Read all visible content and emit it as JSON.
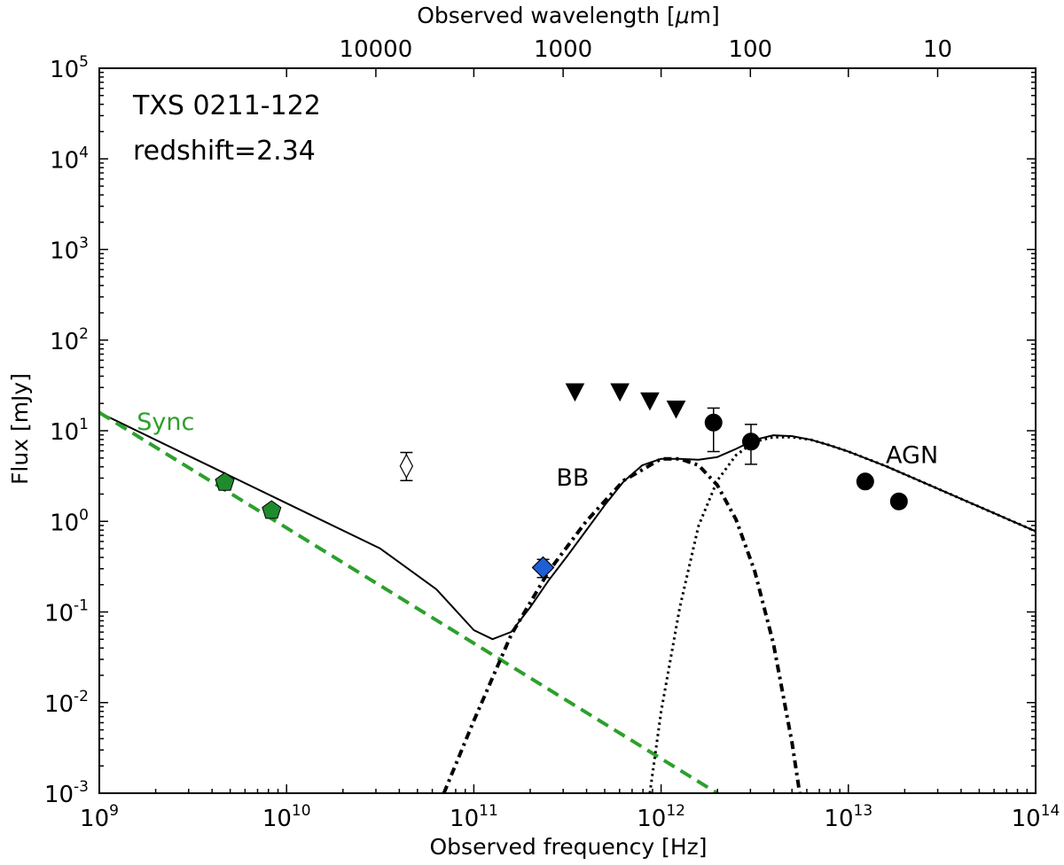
{
  "chart_data": {
    "type": "scatter",
    "title_lines": [
      "TXS 0211-122",
      "redshift=2.34"
    ],
    "xlabel": "Observed frequency [Hz]",
    "ylabel": "Flux [mJy]",
    "top_xlabel_prefix": "Observed wavelength [",
    "top_xlabel_unit": "μ",
    "top_xlabel_suffix": "m]",
    "x_scale": "log",
    "y_scale": "log",
    "xlim_log10": [
      9,
      14
    ],
    "ylim_log10": [
      -3,
      5
    ],
    "x_ticks": [
      {
        "base": "10",
        "exp": "9",
        "v": 9
      },
      {
        "base": "10",
        "exp": "10",
        "v": 10
      },
      {
        "base": "10",
        "exp": "11",
        "v": 11
      },
      {
        "base": "10",
        "exp": "12",
        "v": 12
      },
      {
        "base": "10",
        "exp": "13",
        "v": 13
      },
      {
        "base": "10",
        "exp": "14",
        "v": 14
      }
    ],
    "y_ticks": [
      {
        "base": "10",
        "exp": "-3",
        "v": -3
      },
      {
        "base": "10",
        "exp": "-2",
        "v": -2
      },
      {
        "base": "10",
        "exp": "-1",
        "v": -1
      },
      {
        "base": "10",
        "exp": "0",
        "v": 0
      },
      {
        "base": "10",
        "exp": "1",
        "v": 1
      },
      {
        "base": "10",
        "exp": "2",
        "v": 2
      },
      {
        "base": "10",
        "exp": "3",
        "v": 3
      },
      {
        "base": "10",
        "exp": "4",
        "v": 4
      },
      {
        "base": "10",
        "exp": "5",
        "v": 5
      }
    ],
    "top_ticks": [
      {
        "label": "10000",
        "lambda_um": 10000
      },
      {
        "label": "1000",
        "lambda_um": 1000
      },
      {
        "label": "100",
        "lambda_um": 100
      },
      {
        "label": "10",
        "lambda_um": 10
      }
    ],
    "annotations": [
      {
        "text": "Sync",
        "x_log": 9.2,
        "y_log": 1.1,
        "color": "#2ca02c",
        "cls": "annot-mid"
      },
      {
        "text": "BB",
        "x_log": 11.44,
        "y_log": 0.48,
        "color": "#000000",
        "cls": "annot-mid"
      },
      {
        "text": "AGN",
        "x_log": 13.2,
        "y_log": 0.73,
        "color": "#000000",
        "cls": "annot-mid"
      }
    ],
    "series": [
      {
        "name": "total-model",
        "style": "solid",
        "color": "#000000",
        "x_log": [
          9.0,
          9.5,
          10.0,
          10.5,
          10.8,
          11.0,
          11.1,
          11.2,
          11.3,
          11.4,
          11.5,
          11.6,
          11.7,
          11.8,
          11.9,
          12.0,
          12.1,
          12.2,
          12.3,
          12.4,
          12.5,
          12.6,
          12.7,
          12.8,
          12.9,
          13.0,
          13.2,
          13.4,
          13.6,
          13.8,
          14.0
        ],
        "y_log": [
          1.2,
          0.7,
          0.2,
          -0.3,
          -0.75,
          -1.2,
          -1.3,
          -1.22,
          -0.95,
          -0.65,
          -0.38,
          -0.1,
          0.18,
          0.44,
          0.62,
          0.69,
          0.69,
          0.68,
          0.71,
          0.8,
          0.9,
          0.95,
          0.94,
          0.9,
          0.84,
          0.77,
          0.61,
          0.43,
          0.25,
          0.07,
          -0.11
        ]
      },
      {
        "name": "sync-powerlaw",
        "style": "dashed",
        "color": "#2ca02c",
        "x_log": [
          9.0,
          12.3
        ],
        "y_log": [
          1.2,
          -3.0
        ]
      },
      {
        "name": "blackbody",
        "style": "dashdot",
        "color": "#000000",
        "x_log": [
          10.84,
          11.0,
          11.2,
          11.4,
          11.6,
          11.8,
          12.0,
          12.1,
          12.2,
          12.3,
          12.4,
          12.5,
          12.6,
          12.7,
          12.74
        ],
        "y_log": [
          -3.0,
          -2.2,
          -1.25,
          -0.55,
          0.0,
          0.45,
          0.69,
          0.69,
          0.62,
          0.4,
          0.02,
          -0.55,
          -1.35,
          -2.45,
          -3.0
        ]
      },
      {
        "name": "agn-model",
        "style": "dotted",
        "color": "#000000",
        "x_log": [
          11.94,
          12.0,
          12.1,
          12.2,
          12.3,
          12.4,
          12.5,
          12.6,
          12.7,
          12.8,
          12.9,
          13.0,
          13.2,
          13.4,
          13.6,
          13.8,
          14.0
        ],
        "y_log": [
          -3.0,
          -2.1,
          -0.95,
          -0.05,
          0.45,
          0.73,
          0.88,
          0.93,
          0.93,
          0.9,
          0.84,
          0.77,
          0.61,
          0.43,
          0.25,
          0.07,
          -0.11
        ]
      }
    ],
    "points": [
      {
        "kind": "pentagon",
        "color": "#1f8a2e",
        "x_log": 9.67,
        "y_log": 0.43
      },
      {
        "kind": "pentagon",
        "color": "#1f8a2e",
        "x_log": 9.92,
        "y_log": 0.12
      },
      {
        "kind": "open-diamond",
        "color": "#ffffff",
        "x_log": 10.64,
        "y_log": 0.61,
        "err_log": [
          0.45,
          0.76
        ]
      },
      {
        "kind": "diamond",
        "color": "#1f5fd6",
        "x_log": 11.37,
        "y_log": -0.51,
        "err_log": [
          -0.62,
          -0.42
        ]
      },
      {
        "kind": "triangle-down",
        "color": "#000000",
        "x_log": 11.54,
        "y_log": 1.43
      },
      {
        "kind": "triangle-down",
        "color": "#000000",
        "x_log": 11.78,
        "y_log": 1.43
      },
      {
        "kind": "triangle-down",
        "color": "#000000",
        "x_log": 11.94,
        "y_log": 1.33
      },
      {
        "kind": "triangle-down",
        "color": "#000000",
        "x_log": 12.08,
        "y_log": 1.24
      },
      {
        "kind": "circle",
        "color": "#000000",
        "x_log": 12.28,
        "y_log": 1.09,
        "err_log": [
          0.77,
          1.25
        ]
      },
      {
        "kind": "circle",
        "color": "#000000",
        "x_log": 12.48,
        "y_log": 0.88,
        "err_log": [
          0.63,
          1.07
        ]
      },
      {
        "kind": "circle",
        "color": "#000000",
        "x_log": 13.09,
        "y_log": 0.44
      },
      {
        "kind": "circle",
        "color": "#000000",
        "x_log": 13.27,
        "y_log": 0.22
      }
    ]
  }
}
